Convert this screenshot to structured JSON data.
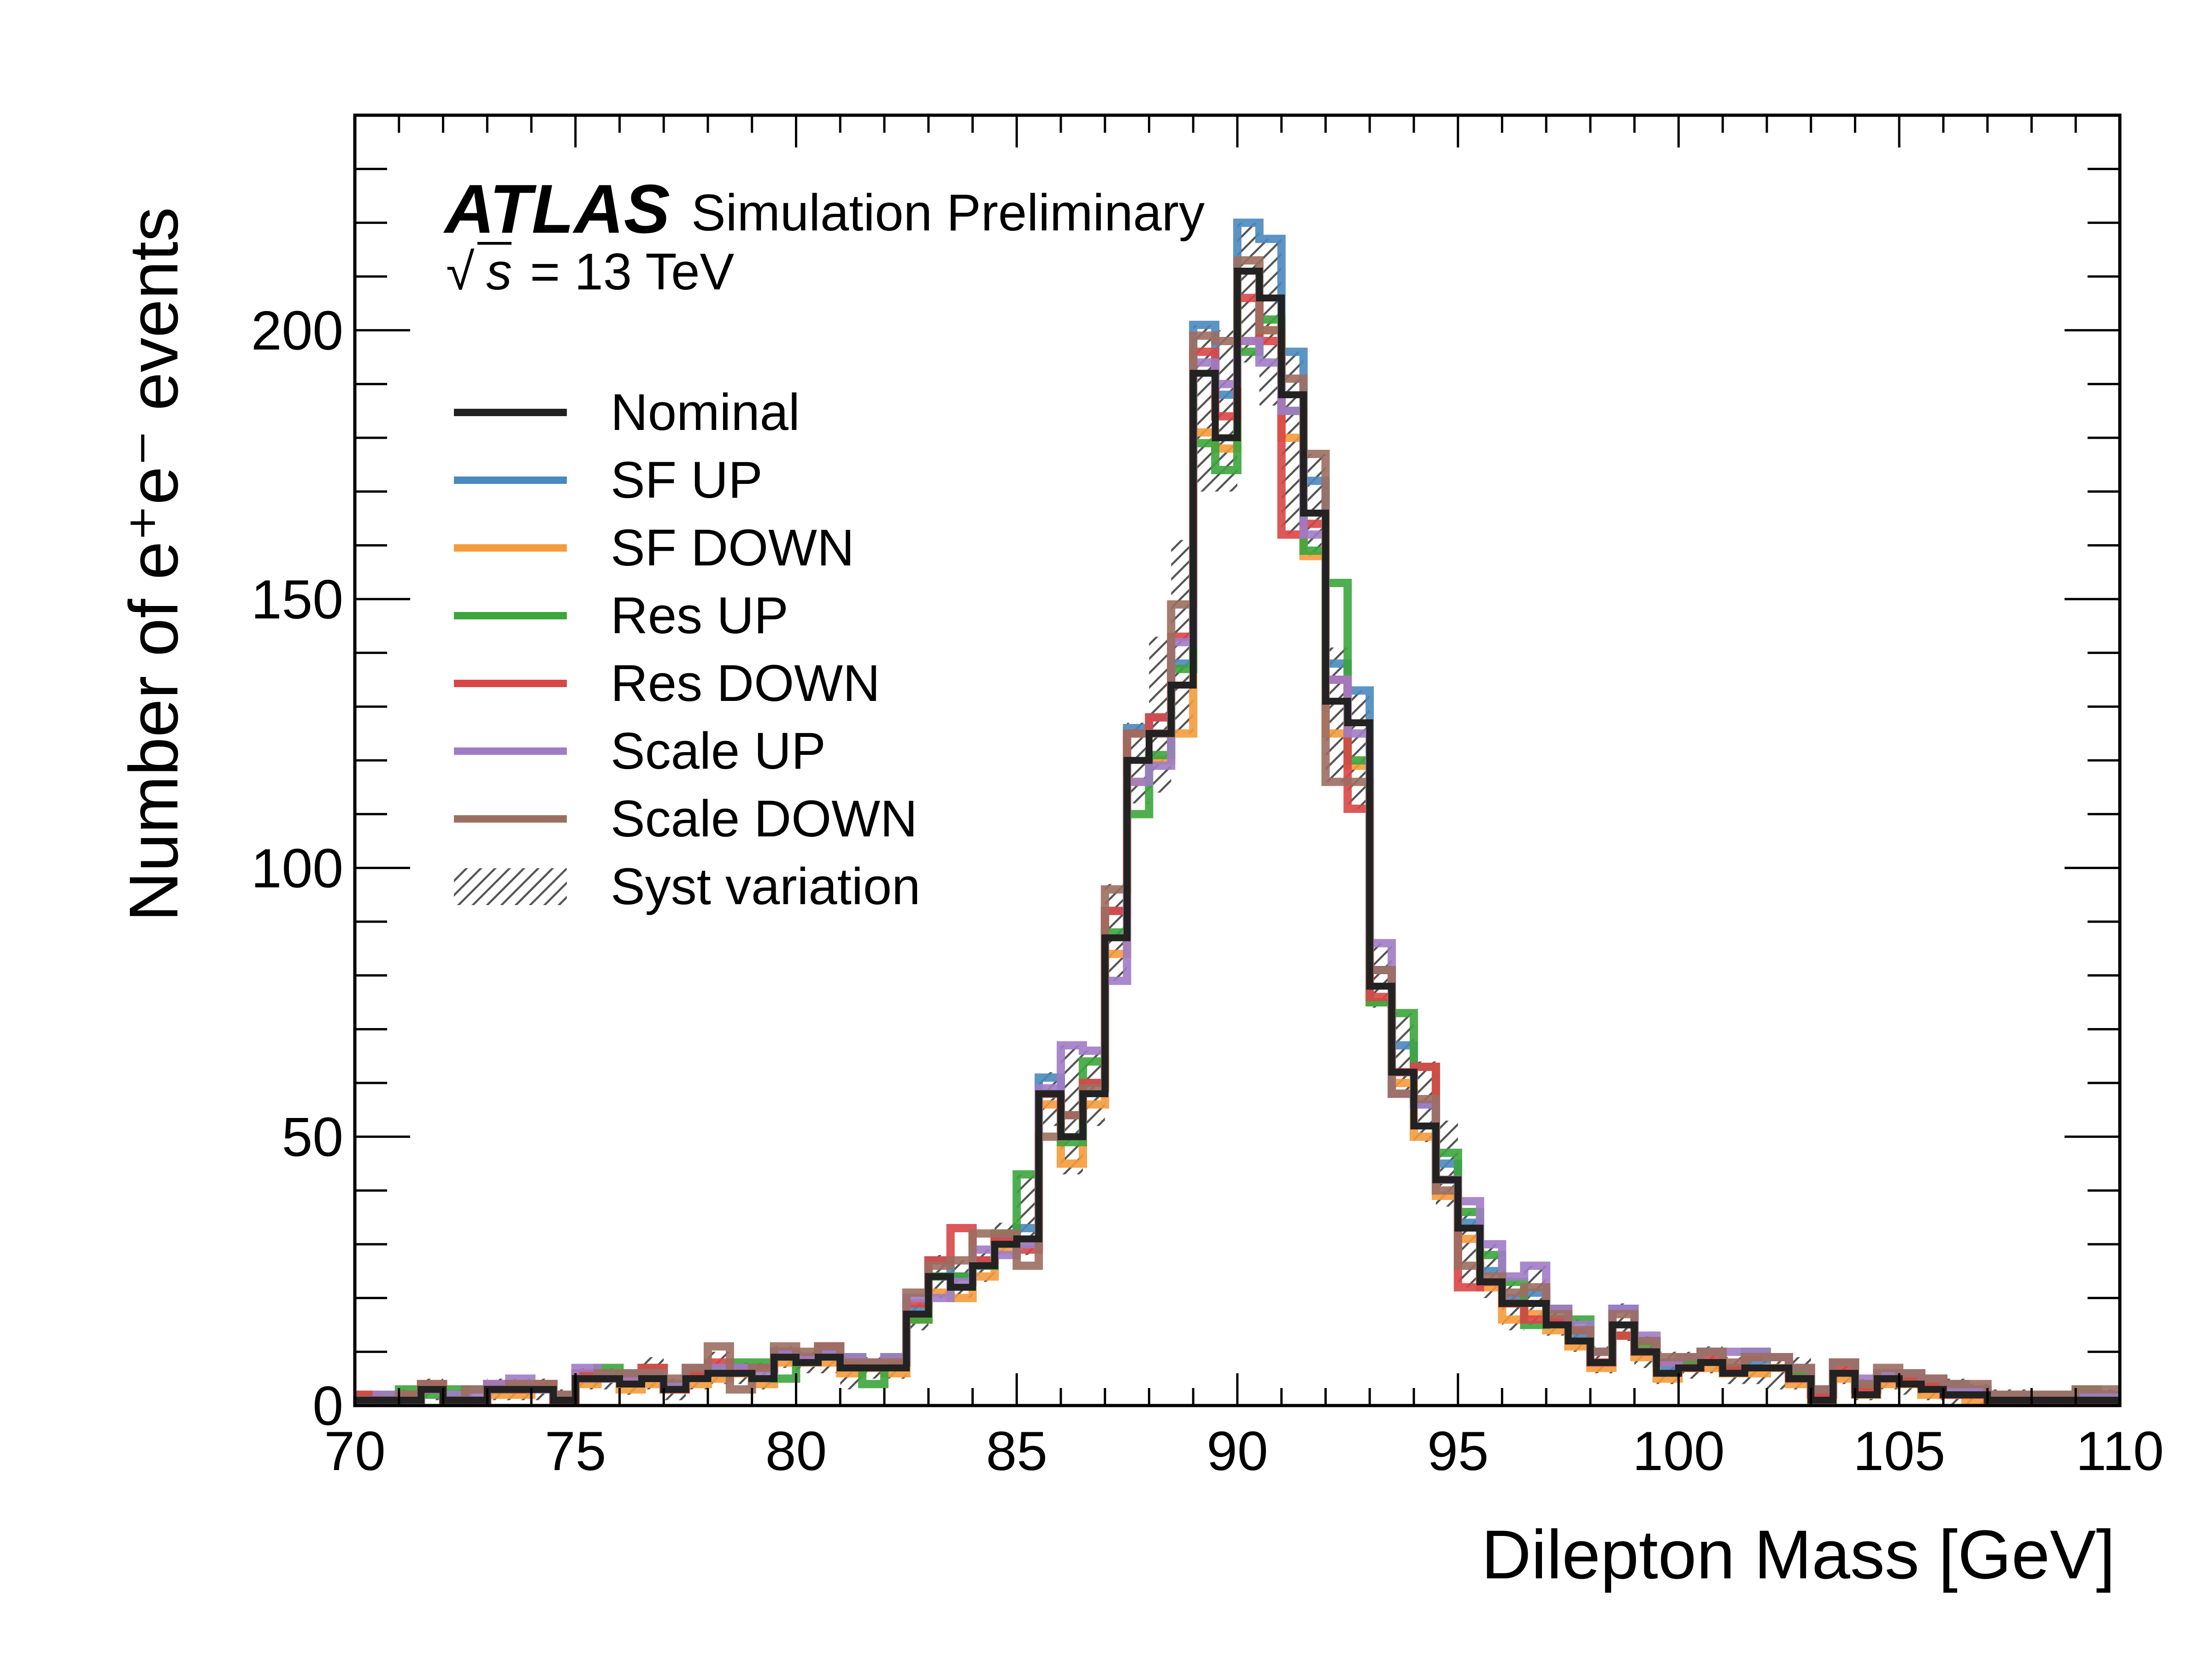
{
  "chart_data": {
    "type": "line",
    "title": "",
    "xlabel": "Dilepton Mass [GeV]",
    "ylabel": "Number of e⁺e⁻ events",
    "xlim": [
      70,
      110
    ],
    "ylim": [
      0,
      240
    ],
    "x_ticks": [
      70,
      75,
      80,
      85,
      90,
      95,
      100,
      105,
      110
    ],
    "y_ticks": [
      0,
      50,
      100,
      150,
      200
    ],
    "labels": {
      "x_ticks": [
        "70",
        "75",
        "80",
        "85",
        "90",
        "95",
        "100",
        "105",
        "110"
      ],
      "y_ticks": [
        "0",
        "50",
        "100",
        "150",
        "200"
      ]
    },
    "annotations": {
      "experiment": "ATLAS",
      "status": "Simulation Preliminary",
      "sqrt": "√",
      "s": "s",
      "energy": "= 13 TeV"
    },
    "bins": {
      "start": 70,
      "width": 0.5,
      "count": 80
    },
    "nominal": [
      1,
      1,
      1,
      3,
      1,
      1,
      3,
      3,
      3,
      1,
      5,
      5,
      4,
      5,
      3,
      5,
      6,
      6,
      5,
      9,
      8,
      9,
      7,
      7,
      7,
      17,
      24,
      22,
      26,
      30,
      31,
      58,
      50,
      58,
      87,
      120,
      125,
      134,
      192,
      180,
      211,
      206,
      188,
      166,
      131,
      127,
      78,
      62,
      52,
      42,
      33,
      23,
      19,
      19,
      15,
      12,
      8,
      15,
      10,
      6,
      7,
      8,
      6,
      7,
      7,
      5,
      1,
      6,
      2,
      5,
      4,
      3,
      2,
      2,
      1,
      1,
      1,
      1,
      1,
      1
    ],
    "syst_band": {
      "low": [
        0,
        0,
        0,
        1,
        0,
        0,
        1,
        1,
        1,
        0,
        3,
        3,
        2,
        3,
        1,
        3,
        4,
        4,
        3,
        7,
        6,
        6,
        3,
        5,
        5,
        14,
        20,
        20,
        23,
        28,
        28,
        52,
        43,
        52,
        79,
        112,
        114,
        125,
        170,
        170,
        194,
        186,
        162,
        158,
        116,
        111,
        74,
        58,
        49,
        37,
        22,
        20,
        14,
        15,
        13,
        10,
        6,
        12,
        7,
        4,
        5,
        6,
        4,
        4,
        3,
        3,
        0,
        4,
        1,
        3,
        2,
        1,
        0,
        0,
        0,
        0,
        0,
        0,
        0,
        0
      ],
      "high": [
        2,
        2,
        3,
        5,
        3,
        3,
        5,
        5,
        5,
        3,
        7,
        7,
        6,
        9,
        5,
        7,
        10,
        8,
        8,
        11,
        10,
        11,
        9,
        9,
        9,
        19,
        28,
        27,
        29,
        34,
        43,
        62,
        67,
        66,
        97,
        127,
        143,
        161,
        201,
        200,
        220,
        217,
        196,
        177,
        141,
        133,
        86,
        73,
        64,
        53,
        36,
        30,
        23,
        26,
        18,
        16,
        11,
        19,
        13,
        10,
        10,
        11,
        9,
        10,
        9,
        9,
        3,
        8,
        5,
        6,
        6,
        5,
        5,
        4,
        3,
        3,
        2,
        2,
        3,
        3
      ]
    },
    "series": [
      {
        "name": "Nominal",
        "color": "#222222",
        "offsets": [
          0
        ]
      },
      {
        "name": "SF UP",
        "color": "#4a88be",
        "offsets": [
          1,
          0,
          1,
          0,
          1,
          2,
          1,
          0,
          1,
          0,
          0,
          1,
          2,
          1,
          0,
          1,
          0,
          1,
          2,
          1,
          0,
          1,
          0,
          1,
          1,
          1,
          3,
          2,
          1,
          1,
          2,
          3,
          4,
          2,
          5,
          6,
          3,
          4,
          9,
          8,
          9,
          11,
          8,
          6,
          7,
          6,
          3,
          5,
          4,
          3,
          1,
          2,
          1,
          2,
          1,
          1,
          2,
          3,
          2,
          1,
          1,
          2,
          1,
          1,
          2,
          1,
          1,
          2,
          1,
          1,
          1,
          1,
          2,
          1,
          1,
          1,
          0,
          1,
          1,
          1
        ]
      },
      {
        "name": "SF DOWN",
        "color": "#f59b3c",
        "offsets": [
          -1,
          0,
          -1,
          0,
          -1,
          0,
          -1,
          -1,
          0,
          -1,
          -1,
          0,
          -1,
          -1,
          0,
          -1,
          -1,
          0,
          -1,
          -1,
          0,
          -1,
          -1,
          0,
          -1,
          -1,
          -3,
          -2,
          -2,
          -1,
          -1,
          -2,
          -5,
          -2,
          -3,
          -4,
          -5,
          -9,
          -11,
          -2,
          -13,
          -6,
          -8,
          -8,
          -6,
          -8,
          -3,
          -2,
          -2,
          -3,
          -2,
          -1,
          -3,
          -2,
          -1,
          -1,
          -1,
          -2,
          -1,
          -1,
          0,
          -1,
          0,
          -1,
          0,
          -1,
          0,
          -1,
          0,
          -1,
          0,
          -1,
          0,
          -1,
          0,
          0,
          0,
          0,
          0,
          0
        ]
      },
      {
        "name": "Res UP",
        "color": "#3ca53c",
        "offsets": [
          1,
          1,
          2,
          -1,
          2,
          0,
          0,
          1,
          1,
          1,
          1,
          2,
          1,
          2,
          1,
          1,
          1,
          2,
          3,
          -4,
          1,
          2,
          2,
          -3,
          2,
          -1,
          0,
          2,
          0,
          2,
          12,
          0,
          -1,
          6,
          1,
          -10,
          -4,
          3,
          -13,
          -6,
          -15,
          -4,
          -3,
          -7,
          22,
          -7,
          -3,
          11,
          11,
          5,
          3,
          5,
          4,
          -4,
          3,
          4,
          2,
          -2,
          1,
          2,
          1,
          2,
          1,
          3,
          2,
          1,
          2,
          2,
          2,
          1,
          1,
          1,
          1,
          0,
          1,
          1,
          1,
          1,
          2,
          1
        ]
      },
      {
        "name": "Res DOWN",
        "color": "#d94646",
        "offsets": [
          1,
          0,
          1,
          1,
          0,
          0,
          1,
          0,
          1,
          0,
          1,
          0,
          1,
          2,
          0,
          1,
          2,
          1,
          2,
          1,
          1,
          2,
          1,
          1,
          1,
          2,
          3,
          11,
          1,
          1,
          -2,
          0,
          4,
          2,
          5,
          5,
          3,
          9,
          4,
          4,
          -5,
          -8,
          -26,
          -2,
          4,
          -16,
          -2,
          0,
          11,
          0,
          -11,
          0,
          0,
          -3,
          1,
          2,
          0,
          -2,
          0,
          2,
          0,
          1,
          1,
          2,
          2,
          0,
          1,
          1,
          1,
          0,
          1,
          1,
          0,
          0,
          0,
          0,
          0,
          0,
          0,
          0
        ]
      },
      {
        "name": "Scale UP",
        "color": "#a07cc5",
        "offsets": [
          0,
          1,
          0,
          0,
          1,
          1,
          1,
          2,
          0,
          1,
          2,
          0,
          1,
          1,
          1,
          2,
          1,
          1,
          1,
          1,
          1,
          1,
          2,
          1,
          2,
          3,
          -4,
          1,
          3,
          -2,
          -1,
          1,
          17,
          8,
          -8,
          -4,
          -6,
          8,
          2,
          10,
          -13,
          -12,
          -3,
          -4,
          4,
          -2,
          8,
          -4,
          4,
          0,
          5,
          7,
          5,
          7,
          3,
          3,
          2,
          3,
          3,
          2,
          2,
          2,
          4,
          3,
          2,
          2,
          2,
          2,
          3,
          1,
          2,
          2,
          1,
          1,
          1,
          1,
          1,
          1,
          1,
          1
        ]
      },
      {
        "name": "Scale DOWN",
        "color": "#9c6e62",
        "offsets": [
          0,
          0,
          1,
          1,
          0,
          2,
          0,
          1,
          1,
          1,
          0,
          1,
          2,
          1,
          2,
          2,
          5,
          -3,
          2,
          2,
          2,
          2,
          1,
          1,
          1,
          4,
          2,
          5,
          6,
          2,
          -5,
          -8,
          4,
          1,
          9,
          5,
          0,
          15,
          7,
          18,
          2,
          -6,
          3,
          11,
          -15,
          -11,
          3,
          -4,
          5,
          -2,
          -7,
          1,
          2,
          3,
          2,
          2,
          2,
          2,
          2,
          3,
          2,
          2,
          2,
          2,
          2,
          2,
          2,
          2,
          2,
          2,
          2,
          2,
          2,
          2,
          1,
          1,
          1,
          1,
          2,
          2
        ]
      }
    ],
    "legend": [
      {
        "label": "Nominal",
        "kind": "line",
        "color": "#222222"
      },
      {
        "label": "SF UP",
        "kind": "line",
        "color": "#4a88be"
      },
      {
        "label": "SF DOWN",
        "kind": "line",
        "color": "#f59b3c"
      },
      {
        "label": "Res UP",
        "kind": "line",
        "color": "#3ca53c"
      },
      {
        "label": "Res DOWN",
        "kind": "line",
        "color": "#d94646"
      },
      {
        "label": "Scale UP",
        "kind": "line",
        "color": "#a07cc5"
      },
      {
        "label": "Scale DOWN",
        "kind": "line",
        "color": "#9c6e62"
      },
      {
        "label": "Syst variation",
        "kind": "hatch",
        "color": "#555555"
      }
    ]
  }
}
